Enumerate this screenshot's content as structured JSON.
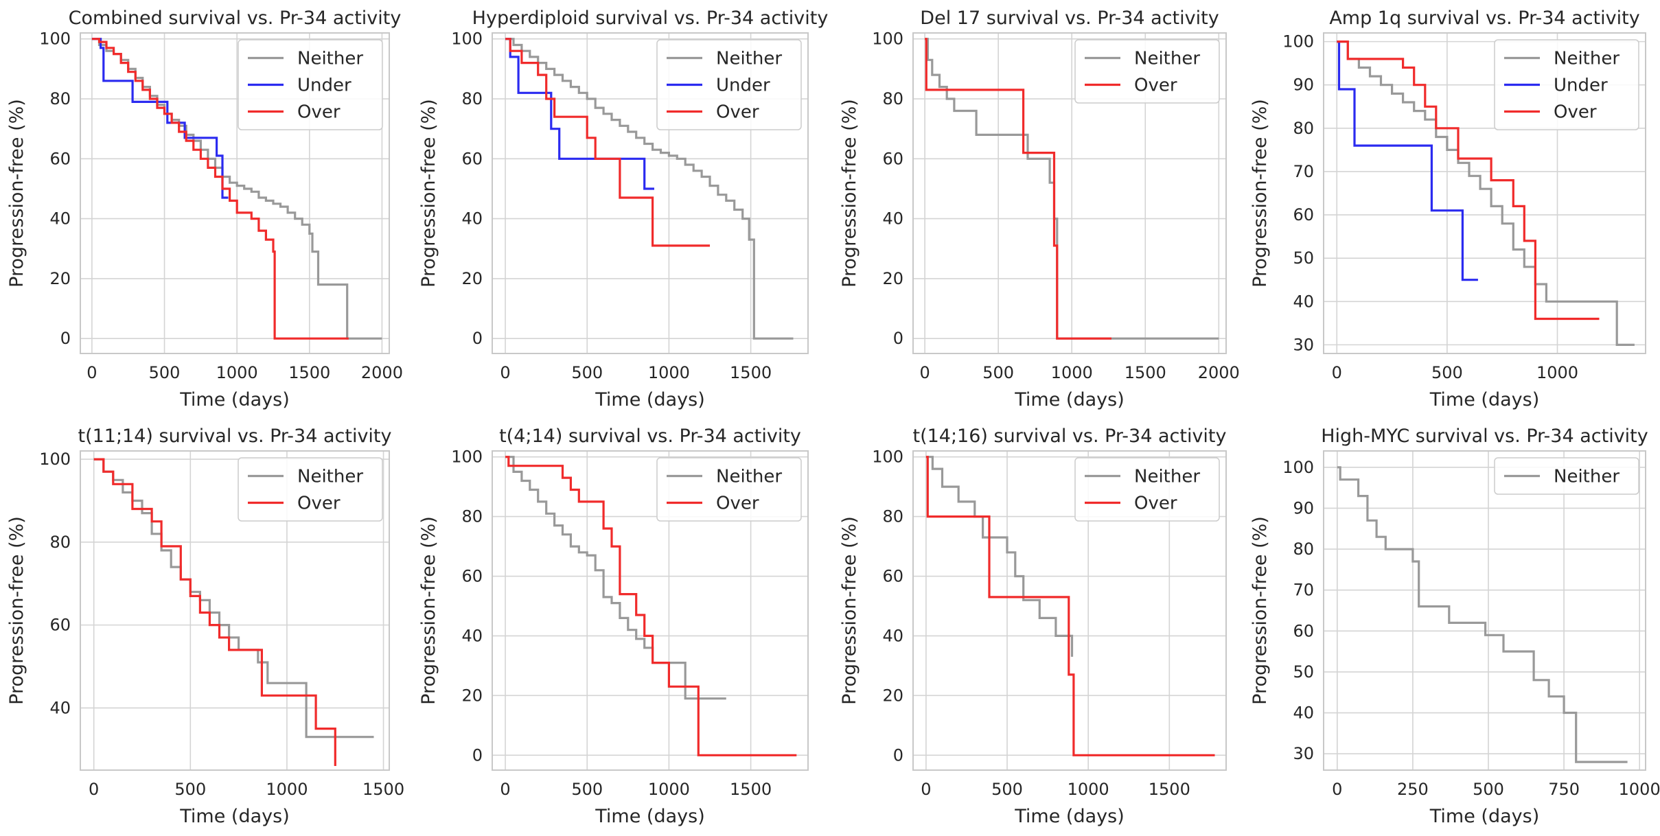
{
  "colors": {
    "Neither": "#999999",
    "Under": "#2b2bf0",
    "Over": "#f02b2b",
    "grid": "#d4d4d4",
    "frame": "#c8c8c8"
  },
  "chart_data": [
    {
      "type": "line",
      "title": "Combined survival vs. Pr-34 activity",
      "xlabel": "Time (days)",
      "ylabel": "Progression-free (%)",
      "xlim": [
        -80,
        2050
      ],
      "ylim": [
        -5,
        102
      ],
      "xticks": [
        0,
        500,
        1000,
        1500,
        2000
      ],
      "yticks": [
        0,
        20,
        40,
        60,
        80,
        100
      ],
      "series": [
        {
          "name": "Neither",
          "x": [
            0,
            50,
            100,
            150,
            200,
            250,
            300,
            350,
            400,
            450,
            500,
            550,
            600,
            650,
            700,
            750,
            800,
            850,
            900,
            950,
            1000,
            1050,
            1100,
            1150,
            1200,
            1250,
            1300,
            1350,
            1400,
            1450,
            1500,
            1520,
            1560,
            1600,
            1650,
            1700,
            1750,
            1760,
            2000
          ],
          "y": [
            100,
            98,
            96,
            95,
            93,
            90,
            87,
            84,
            81,
            78,
            75,
            73,
            71,
            68,
            66,
            63,
            60,
            57,
            54,
            52,
            51,
            50,
            49,
            47,
            46,
            45,
            44,
            42,
            40,
            38,
            35,
            29,
            18,
            18,
            18,
            18,
            18,
            0,
            0
          ]
        },
        {
          "name": "Under",
          "x": [
            0,
            60,
            80,
            250,
            280,
            400,
            520,
            540,
            640,
            680,
            860,
            900,
            940
          ],
          "y": [
            100,
            97,
            86,
            86,
            79,
            79,
            72,
            72,
            67,
            67,
            61,
            47,
            47
          ]
        },
        {
          "name": "Over",
          "x": [
            0,
            50,
            100,
            150,
            200,
            250,
            300,
            350,
            400,
            450,
            500,
            550,
            600,
            650,
            700,
            750,
            800,
            850,
            900,
            950,
            1000,
            1100,
            1150,
            1200,
            1250,
            1260,
            1770
          ],
          "y": [
            100,
            99,
            97,
            95,
            92,
            89,
            86,
            83,
            80,
            77,
            75,
            72,
            69,
            66,
            63,
            60,
            57,
            54,
            50,
            46,
            42,
            40,
            36,
            33,
            29,
            0,
            0
          ]
        }
      ]
    },
    {
      "type": "line",
      "title": "Hyperdiploid survival vs. Pr-34 activity",
      "xlabel": "Time (days)",
      "ylabel": "Progression-free (%)",
      "xlim": [
        -80,
        1850
      ],
      "ylim": [
        -5,
        102
      ],
      "xticks": [
        0,
        500,
        1000,
        1500
      ],
      "yticks": [
        0,
        20,
        40,
        60,
        80,
        100
      ],
      "series": [
        {
          "name": "Neither",
          "x": [
            0,
            50,
            100,
            150,
            200,
            250,
            300,
            350,
            400,
            450,
            500,
            550,
            600,
            650,
            700,
            750,
            800,
            850,
            900,
            950,
            1000,
            1050,
            1100,
            1150,
            1200,
            1250,
            1300,
            1350,
            1400,
            1450,
            1490,
            1520,
            1760
          ],
          "y": [
            100,
            98,
            96,
            94,
            92,
            90,
            88,
            86,
            84,
            82,
            80,
            77,
            75,
            73,
            71,
            69,
            67,
            65,
            63,
            62,
            61,
            60,
            58,
            56,
            54,
            51,
            48,
            46,
            43,
            40,
            33,
            0,
            0
          ]
        },
        {
          "name": "Under",
          "x": [
            0,
            30,
            80,
            250,
            280,
            330,
            850,
            910
          ],
          "y": [
            100,
            94,
            82,
            82,
            70,
            60,
            50,
            50
          ]
        },
        {
          "name": "Over",
          "x": [
            0,
            30,
            100,
            200,
            250,
            300,
            350,
            500,
            550,
            600,
            700,
            750,
            900,
            1250
          ],
          "y": [
            100,
            96,
            92,
            88,
            80,
            74,
            74,
            67,
            60,
            60,
            47,
            47,
            31,
            31
          ]
        }
      ]
    },
    {
      "type": "line",
      "title": "Del 17 survival vs. Pr-34 activity",
      "xlabel": "Time (days)",
      "ylabel": "Progression-free (%)",
      "xlim": [
        -80,
        2050
      ],
      "ylim": [
        -5,
        102
      ],
      "xticks": [
        0,
        500,
        1000,
        1500,
        2000
      ],
      "yticks": [
        0,
        20,
        40,
        60,
        80,
        100
      ],
      "series": [
        {
          "name": "Neither",
          "x": [
            0,
            20,
            50,
            100,
            150,
            200,
            350,
            600,
            700,
            850,
            880,
            900,
            2000
          ],
          "y": [
            100,
            93,
            88,
            84,
            80,
            76,
            68,
            68,
            60,
            52,
            40,
            0,
            0
          ]
        },
        {
          "name": "Over",
          "x": [
            0,
            10,
            630,
            670,
            880,
            900,
            1270
          ],
          "y": [
            100,
            83,
            83,
            62,
            31,
            0,
            0
          ]
        }
      ]
    },
    {
      "type": "line",
      "title": "Amp 1q survival vs. Pr-34 activity",
      "xlabel": "Time (days)",
      "ylabel": "Progression-free (%)",
      "xlim": [
        -60,
        1400
      ],
      "ylim": [
        28,
        102
      ],
      "xticks": [
        0,
        500,
        1000
      ],
      "yticks": [
        30,
        40,
        50,
        60,
        70,
        80,
        90,
        100
      ],
      "series": [
        {
          "name": "Neither",
          "x": [
            0,
            50,
            100,
            150,
            200,
            250,
            300,
            350,
            400,
            450,
            500,
            550,
            600,
            650,
            700,
            750,
            800,
            850,
            900,
            950,
            1250,
            1270,
            1350
          ],
          "y": [
            100,
            96,
            94,
            92,
            90,
            88,
            86,
            84,
            82,
            78,
            75,
            72,
            69,
            66,
            62,
            58,
            52,
            48,
            44,
            40,
            40,
            30,
            30
          ]
        },
        {
          "name": "Under",
          "x": [
            0,
            10,
            80,
            420,
            430,
            570,
            640
          ],
          "y": [
            100,
            89,
            76,
            76,
            61,
            45,
            45
          ]
        },
        {
          "name": "Over",
          "x": [
            0,
            50,
            300,
            350,
            400,
            450,
            550,
            700,
            800,
            850,
            900,
            1190
          ],
          "y": [
            100,
            96,
            94,
            90,
            85,
            80,
            73,
            68,
            62,
            54,
            36,
            36
          ]
        }
      ]
    },
    {
      "type": "line",
      "title": "t(11;14) survival vs. Pr-34 activity",
      "xlabel": "Time (days)",
      "ylabel": "Progression-free (%)",
      "xlim": [
        -70,
        1530
      ],
      "ylim": [
        25,
        102
      ],
      "xticks": [
        0,
        500,
        1000,
        1500
      ],
      "yticks": [
        40,
        60,
        80,
        100
      ],
      "series": [
        {
          "name": "Neither",
          "x": [
            0,
            50,
            100,
            150,
            200,
            250,
            300,
            350,
            400,
            450,
            500,
            550,
            600,
            650,
            700,
            750,
            850,
            900,
            1050,
            1100,
            1450
          ],
          "y": [
            100,
            97,
            95,
            92,
            90,
            87,
            82,
            78,
            74,
            71,
            68,
            66,
            63,
            60,
            57,
            54,
            51,
            46,
            46,
            33,
            33
          ]
        },
        {
          "name": "Over",
          "x": [
            0,
            50,
            100,
            200,
            300,
            350,
            450,
            500,
            550,
            600,
            650,
            700,
            850,
            870,
            1100,
            1150,
            1250
          ],
          "y": [
            100,
            97,
            94,
            88,
            85,
            79,
            71,
            67,
            63,
            60,
            57,
            54,
            54,
            43,
            43,
            35,
            26
          ]
        }
      ]
    },
    {
      "type": "line",
      "title": "t(4;14) survival vs. Pr-34 activity",
      "xlabel": "Time (days)",
      "ylabel": "Progression-free (%)",
      "xlim": [
        -80,
        1850
      ],
      "ylim": [
        -5,
        102
      ],
      "xticks": [
        0,
        500,
        1000,
        1500
      ],
      "yticks": [
        0,
        20,
        40,
        60,
        80,
        100
      ],
      "series": [
        {
          "name": "Neither",
          "x": [
            0,
            50,
            100,
            150,
            200,
            250,
            300,
            350,
            400,
            450,
            500,
            550,
            600,
            650,
            700,
            750,
            800,
            850,
            900,
            1100,
            1350
          ],
          "y": [
            100,
            95,
            92,
            89,
            85,
            81,
            77,
            74,
            70,
            68,
            67,
            62,
            53,
            51,
            46,
            42,
            39,
            36,
            31,
            19,
            19
          ]
        },
        {
          "name": "Over",
          "x": [
            0,
            20,
            350,
            400,
            450,
            600,
            650,
            700,
            800,
            850,
            900,
            1000,
            1180,
            1780
          ],
          "y": [
            100,
            97,
            93,
            89,
            85,
            76,
            70,
            54,
            47,
            40,
            31,
            23,
            0,
            0
          ]
        }
      ]
    },
    {
      "type": "line",
      "title": "t(14;16) survival vs. Pr-34 activity",
      "xlabel": "Time (days)",
      "ylabel": "Progression-free (%)",
      "xlim": [
        -80,
        1850
      ],
      "ylim": [
        -5,
        102
      ],
      "xticks": [
        0,
        500,
        1000,
        1500
      ],
      "yticks": [
        0,
        20,
        40,
        60,
        80,
        100
      ],
      "series": [
        {
          "name": "Neither",
          "x": [
            0,
            40,
            100,
            200,
            300,
            350,
            500,
            550,
            600,
            700,
            800,
            900
          ],
          "y": [
            100,
            96,
            90,
            85,
            80,
            73,
            68,
            60,
            52,
            46,
            40,
            33
          ]
        },
        {
          "name": "Over",
          "x": [
            0,
            10,
            390,
            880,
            910,
            1780
          ],
          "y": [
            100,
            80,
            53,
            27,
            0,
            0
          ]
        }
      ]
    },
    {
      "type": "line",
      "title": "High-MYC survival vs. Pr-34 activity",
      "xlabel": "Time (days)",
      "ylabel": "Progression-free (%)",
      "xlim": [
        -45,
        1020
      ],
      "ylim": [
        26,
        104
      ],
      "xticks": [
        0,
        250,
        500,
        750,
        1000
      ],
      "yticks": [
        30,
        40,
        50,
        60,
        70,
        80,
        90,
        100
      ],
      "series": [
        {
          "name": "Neither",
          "x": [
            0,
            10,
            70,
            100,
            130,
            160,
            250,
            270,
            370,
            490,
            550,
            650,
            700,
            750,
            790,
            960
          ],
          "y": [
            100,
            97,
            93,
            87,
            83,
            80,
            77,
            66,
            62,
            59,
            55,
            48,
            44,
            40,
            28,
            28
          ]
        }
      ]
    }
  ]
}
